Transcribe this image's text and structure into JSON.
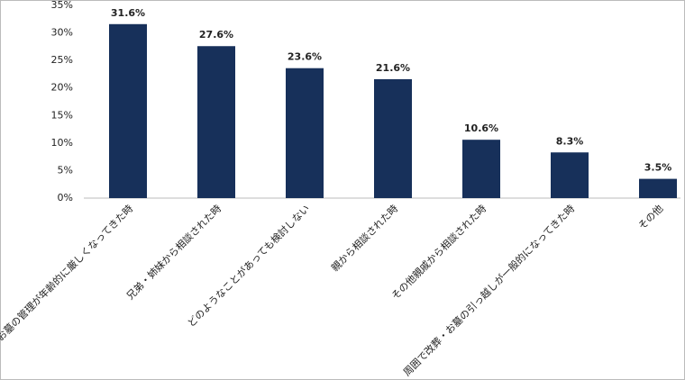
{
  "chart_data": {
    "type": "bar",
    "categories": [
      "お墓の管理が年齢的に厳しくなってきた時",
      "兄弟・姉妹から相談された時",
      "どのようなことがあっても検討しない",
      "親から相談された時",
      "その他親戚から相談された時",
      "周囲で改葬・お墓の引っ越しが一般的になってきた時",
      "その他"
    ],
    "values": [
      31.6,
      27.6,
      23.6,
      21.6,
      10.6,
      8.3,
      3.5
    ],
    "value_labels": [
      "31.6%",
      "27.6%",
      "23.6%",
      "21.6%",
      "10.6%",
      "8.3%",
      "3.5%"
    ],
    "color": "#17305a",
    "ylim": [
      0,
      35
    ],
    "yticks": [
      {
        "value": 0,
        "label": "0%"
      },
      {
        "value": 5,
        "label": "5%"
      },
      {
        "value": 10,
        "label": "10%"
      },
      {
        "value": 15,
        "label": "15%"
      },
      {
        "value": 20,
        "label": "20%"
      },
      {
        "value": 25,
        "label": "25%"
      },
      {
        "value": 30,
        "label": "30%"
      },
      {
        "value": 35,
        "label": "35%"
      }
    ],
    "grid": false
  }
}
